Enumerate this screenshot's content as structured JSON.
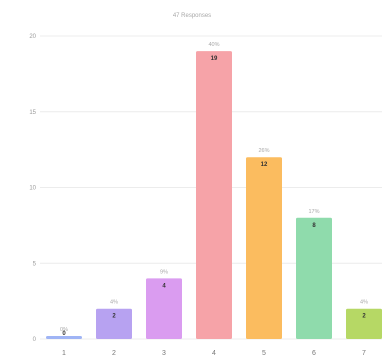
{
  "chart_data": {
    "type": "bar",
    "title": "",
    "subtitle": "47 Responses",
    "xlabel": "",
    "ylabel": "",
    "ylim": [
      0,
      20
    ],
    "yticks": [
      0,
      5,
      10,
      15,
      20
    ],
    "grid": true,
    "categories": [
      "1",
      "2",
      "3",
      "4",
      "5",
      "6",
      "7"
    ],
    "values": [
      0,
      2,
      4,
      19,
      12,
      8,
      2
    ],
    "percent_labels": [
      "0%",
      "4%",
      "9%",
      "40%",
      "26%",
      "17%",
      "4%"
    ],
    "colors": [
      "#9fb4f5",
      "#b7a2f1",
      "#da9cf0",
      "#f6a3a8",
      "#fbbc5f",
      "#8fdbac",
      "#b6d865"
    ]
  }
}
